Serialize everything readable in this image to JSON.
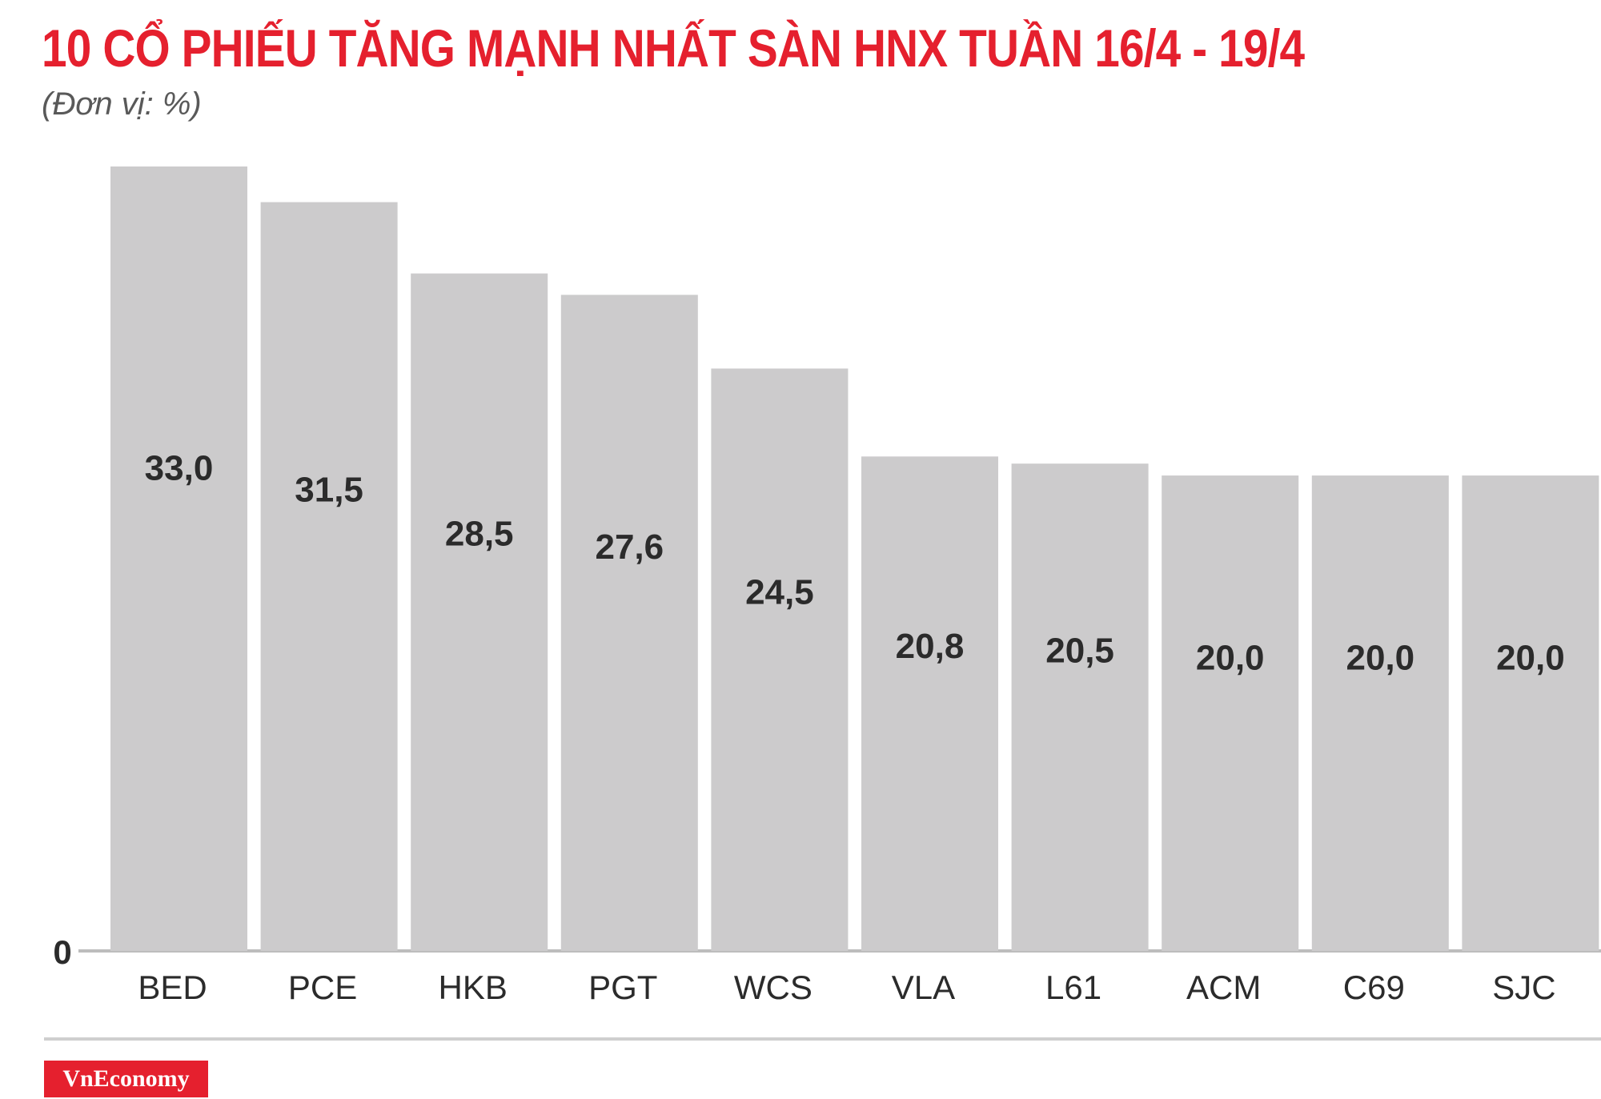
{
  "header": {
    "title": "10 CỔ PHIẾU TĂNG MẠNH NHẤT SÀN HNX TUẦN 16/4 - 19/4",
    "unit": "(Đơn vị: %)"
  },
  "footer": {
    "brand": "VnEconomy"
  },
  "colors": {
    "bar": "#cccbcc",
    "title": "#e5202e",
    "label": "#2b2b2b",
    "axis": "#bdbdbd"
  },
  "chart_data": {
    "type": "bar",
    "title": "10 CỔ PHIẾU TĂNG MẠNH NHẤT SÀN HNX TUẦN 16/4 - 19/4",
    "subtitle": "(Đơn vị: %)",
    "categories": [
      "BED",
      "PCE",
      "HKB",
      "PGT",
      "WCS",
      "VLA",
      "L61",
      "ACM",
      "C69",
      "SJC"
    ],
    "values": [
      33.0,
      31.5,
      28.5,
      27.6,
      24.5,
      20.8,
      20.5,
      20.0,
      20.0,
      20.0
    ],
    "value_labels": [
      "33,0",
      "31,5",
      "28,5",
      "27,6",
      "24,5",
      "20,8",
      "20,5",
      "20,0",
      "20,0",
      "20,0"
    ],
    "y_tick_labels": [
      "0"
    ],
    "ylim": [
      0,
      33
    ],
    "grid": false,
    "legend": "none"
  }
}
